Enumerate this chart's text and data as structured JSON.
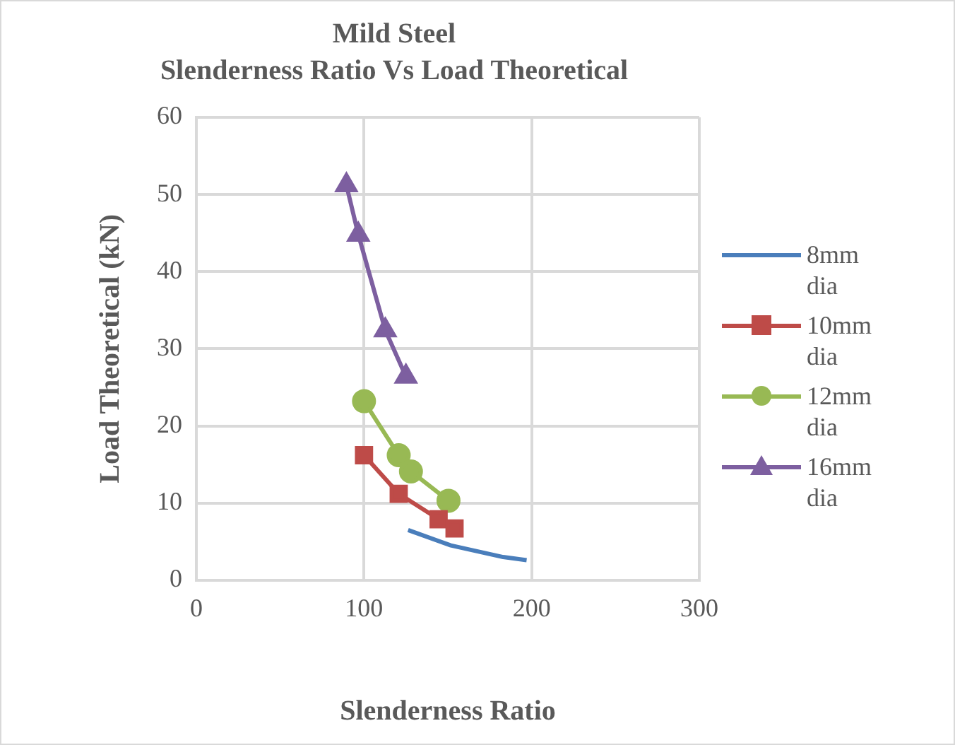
{
  "chart_data": {
    "type": "line",
    "title": "Mild Steel",
    "subtitle": "Slenderness Ratio Vs Load Theoretical",
    "xlabel": "Slenderness Ratio",
    "ylabel": "Load Theoretical (kN)",
    "xlim": [
      0,
      300
    ],
    "xticks": [
      0,
      100,
      200,
      300
    ],
    "ylim": [
      0,
      60
    ],
    "yticks": [
      0,
      10,
      20,
      30,
      40,
      50,
      60
    ],
    "grid": true,
    "legend": "right",
    "line_style": "solid",
    "series": [
      {
        "name": "8mm dia",
        "color": "#4a7ebb",
        "marker": "none",
        "x": [
          126.3,
          151.8,
          183,
          197
        ],
        "values": [
          6.5,
          4.5,
          3.0,
          2.6
        ]
      },
      {
        "name": "10mm dia",
        "color": "#be4b48",
        "marker": "square",
        "x": [
          100,
          120.7,
          144.5,
          154
        ],
        "values": [
          16.2,
          11.2,
          7.9,
          6.7
        ]
      },
      {
        "name": "12mm dia",
        "color": "#98b954",
        "marker": "circle",
        "x": [
          100,
          120.7,
          128,
          150.4
        ],
        "values": [
          23.2,
          16.2,
          14.1,
          10.3
        ]
      },
      {
        "name": "16mm dia",
        "color": "#7d5fa0",
        "marker": "triangle",
        "x": [
          89.5,
          96.6,
          112.7,
          125
        ],
        "values": [
          51.2,
          44.8,
          32.4,
          26.4
        ]
      }
    ]
  }
}
